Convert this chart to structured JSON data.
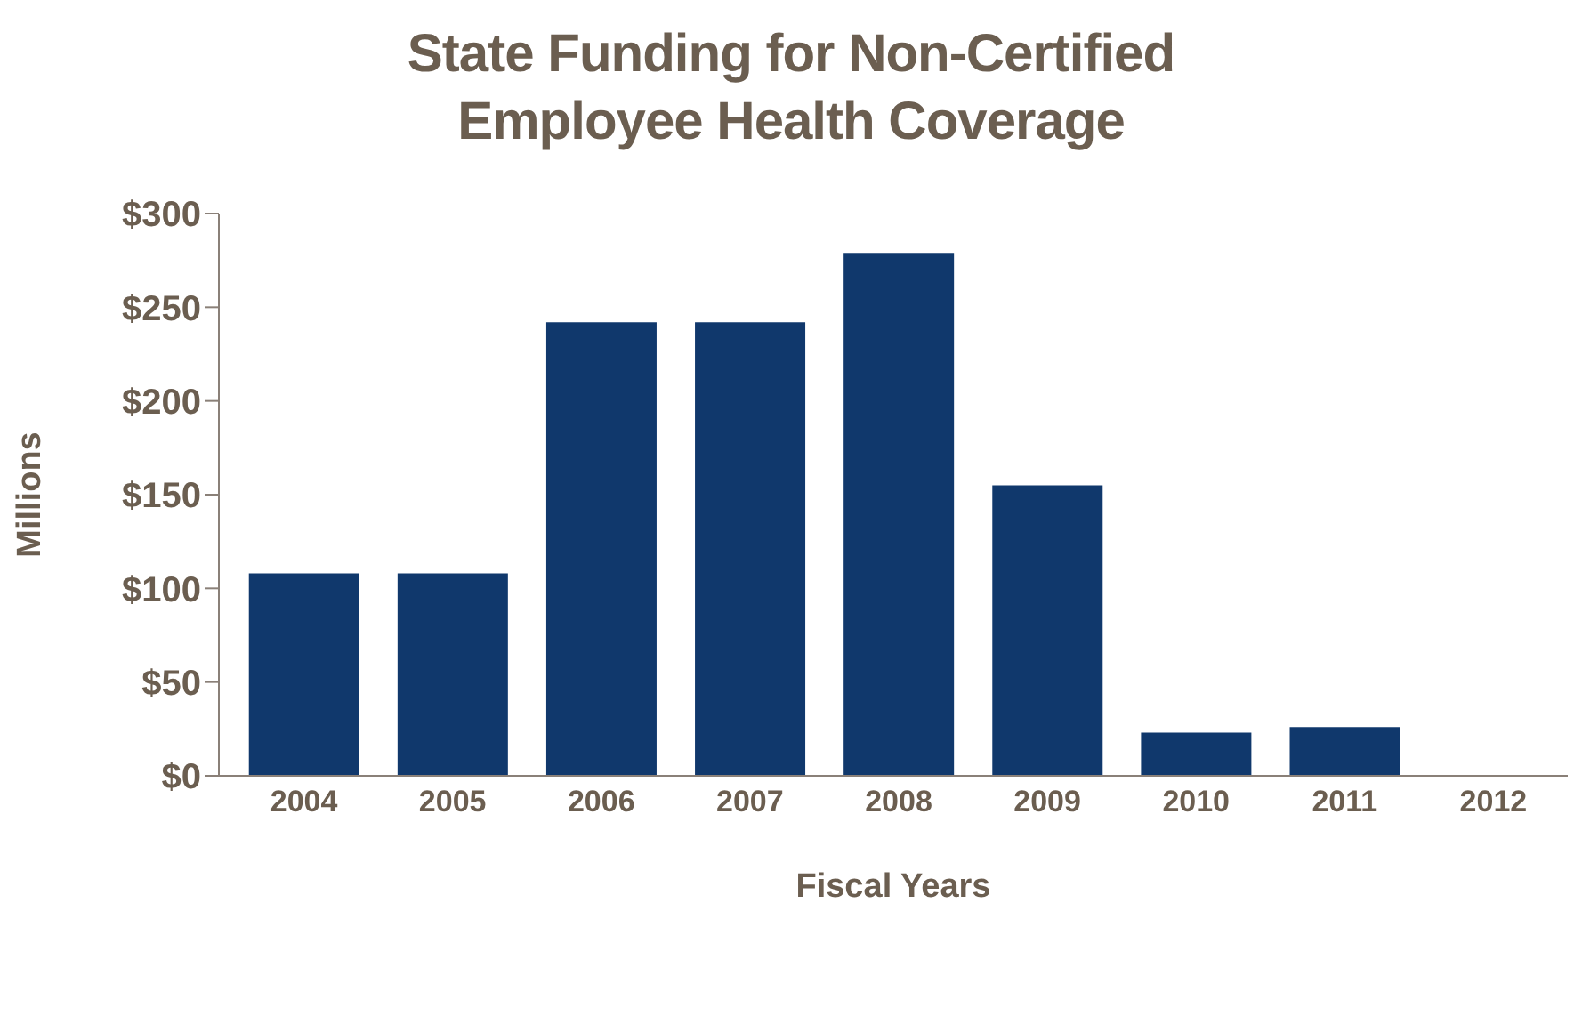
{
  "chart_data": {
    "type": "bar",
    "title": "State Funding for Non-Certified\nEmployee Health Coverage",
    "xlabel": "Fiscal Years",
    "ylabel": "Millions",
    "categories": [
      "2004",
      "2005",
      "2006",
      "2007",
      "2008",
      "2009",
      "2010",
      "2011",
      "2012"
    ],
    "values": [
      108,
      108,
      242,
      242,
      279,
      155,
      23,
      26,
      0
    ],
    "color": "#10386c",
    "ylim": [
      0,
      300
    ],
    "yticks": [
      {
        "value": 0,
        "label": "$0"
      },
      {
        "value": 50,
        "label": "$50"
      },
      {
        "value": 100,
        "label": "$100"
      },
      {
        "value": 150,
        "label": "$150"
      },
      {
        "value": 200,
        "label": "$200"
      },
      {
        "value": 250,
        "label": "$250"
      },
      {
        "value": 300,
        "label": "$300"
      }
    ],
    "grid": false,
    "legend": false
  }
}
